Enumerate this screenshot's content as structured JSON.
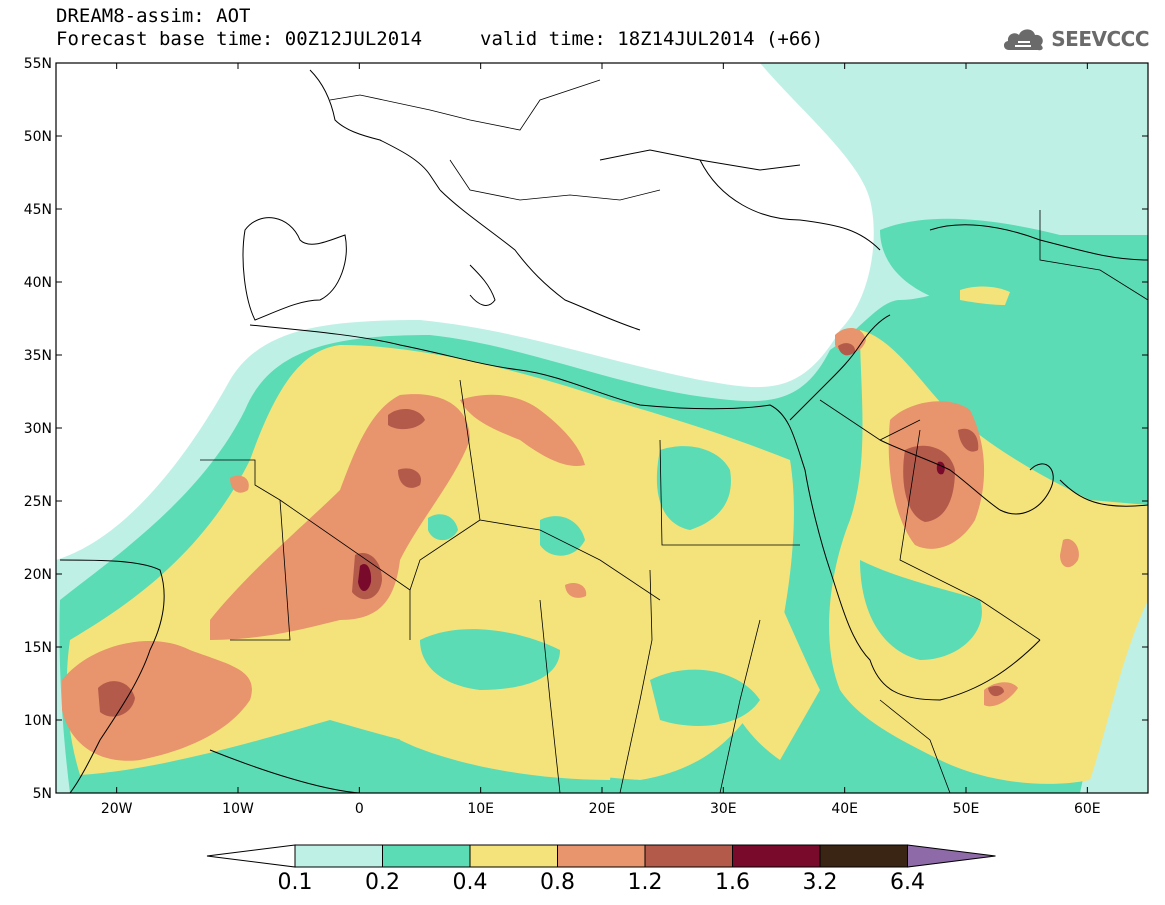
{
  "header": {
    "title_line1": "DREAM8-assim: AOT",
    "title_line2_left": "Forecast base time: 00Z12JUL2014",
    "title_line2_right": "valid time: 18Z14JUL2014 (+66)",
    "logo_text": "SEEVCCC"
  },
  "map": {
    "lon_range": [
      -25,
      65
    ],
    "lat_range": [
      5,
      55
    ],
    "lat_ticks": [
      "55N",
      "50N",
      "45N",
      "40N",
      "35N",
      "30N",
      "25N",
      "20N",
      "15N",
      "10N",
      "5N"
    ],
    "lon_ticks": [
      "20W",
      "10W",
      "0",
      "10E",
      "20E",
      "30E",
      "40E",
      "50E",
      "60E"
    ]
  },
  "colorbar": {
    "labels": [
      "0.1",
      "0.2",
      "0.4",
      "0.8",
      "1.2",
      "1.6",
      "3.2",
      "6.4"
    ],
    "colors": [
      "#bff0e6",
      "#5bdcb4",
      "#f4e37a",
      "#e8946c",
      "#b35a4a",
      "#7a0a2c",
      "#3a2414",
      "#8e6aa8"
    ],
    "under_color": "#ffffff"
  }
}
